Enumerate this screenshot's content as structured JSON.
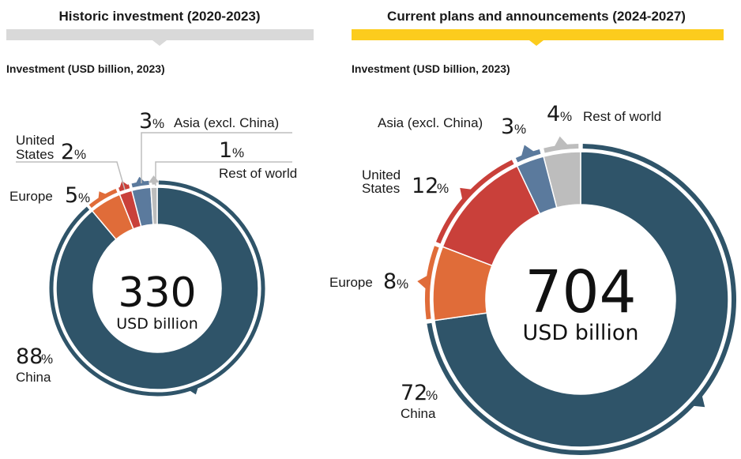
{
  "panels": [
    {
      "title": "Historic investment (2020-2023)",
      "banner_color": "#d9d9d9",
      "subtitle": "Investment (USD billion, 2023)",
      "total": "330",
      "unit": "USD billion"
    },
    {
      "title": "Current plans and announcements (2024-2027)",
      "banner_color": "#fccc1d",
      "subtitle": "Investment (USD billion, 2023)",
      "total": "704",
      "unit": "USD billion"
    }
  ],
  "chart_data": [
    {
      "type": "pie",
      "variant": "donut",
      "title": "Historic investment (2020-2023)",
      "subtitle": "Investment (USD billion, 2023)",
      "total": 330,
      "total_label": "USD billion",
      "slices": [
        {
          "label": "China",
          "value": 88,
          "percent_text": "88",
          "color": "#2f5469"
        },
        {
          "label": "Europe",
          "value": 5,
          "percent_text": "5",
          "color": "#e06c39"
        },
        {
          "label": "United States",
          "value": 2,
          "percent_text": "2",
          "color": "#c9403a"
        },
        {
          "label": "Asia (excl. China)",
          "value": 3,
          "percent_text": "3",
          "color": "#5b7a9d"
        },
        {
          "label": "Rest of world",
          "value": 1,
          "percent_text": "1",
          "color": "#bdbdbd"
        }
      ]
    },
    {
      "type": "pie",
      "variant": "donut",
      "title": "Current plans and announcements (2024-2027)",
      "subtitle": "Investment (USD billion, 2023)",
      "total": 704,
      "total_label": "USD billion",
      "slices": [
        {
          "label": "China",
          "value": 72,
          "percent_text": "72",
          "color": "#2f5469"
        },
        {
          "label": "Europe",
          "value": 8,
          "percent_text": "8",
          "color": "#e06c39"
        },
        {
          "label": "United States",
          "value": 12,
          "percent_text": "12",
          "color": "#c9403a"
        },
        {
          "label": "Asia (excl. China)",
          "value": 3,
          "percent_text": "3",
          "color": "#5b7a9d"
        },
        {
          "label": "Rest of world",
          "value": 4,
          "percent_text": "4",
          "color": "#bdbdbd"
        }
      ]
    }
  ],
  "labels": {
    "left": {
      "china_l1": "China",
      "europe": "Europe",
      "us_l1": "United",
      "us_l2": "States",
      "asia": "Asia (excl. China)",
      "row": "Rest of world"
    },
    "right": {
      "china_l1": "China",
      "europe": "Europe",
      "us_l1": "United",
      "us_l2": "States",
      "asia": "Asia (excl. China)",
      "row": "Rest of world"
    },
    "percent_sign": "%"
  }
}
